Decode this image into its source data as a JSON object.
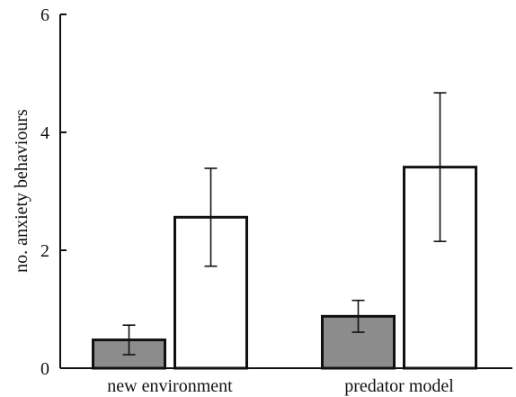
{
  "chart_data": {
    "type": "bar",
    "title": "",
    "xlabel": "",
    "ylabel": "no. anxiety behaviours",
    "categories": [
      "new environment",
      "predator model"
    ],
    "series": [
      {
        "values": [
          0.48,
          0.88
        ],
        "errors": [
          0.25,
          0.27
        ],
        "color": "#8c8c8c"
      },
      {
        "values": [
          2.56,
          3.41
        ],
        "errors": [
          0.83,
          1.26
        ],
        "color": "#ffffff"
      }
    ],
    "ylim": [
      0,
      6
    ],
    "yticks": [
      0,
      2,
      4,
      6
    ],
    "ytick_labels": [
      "0",
      "2",
      "4",
      "6"
    ],
    "grid": false,
    "legend": "none"
  }
}
